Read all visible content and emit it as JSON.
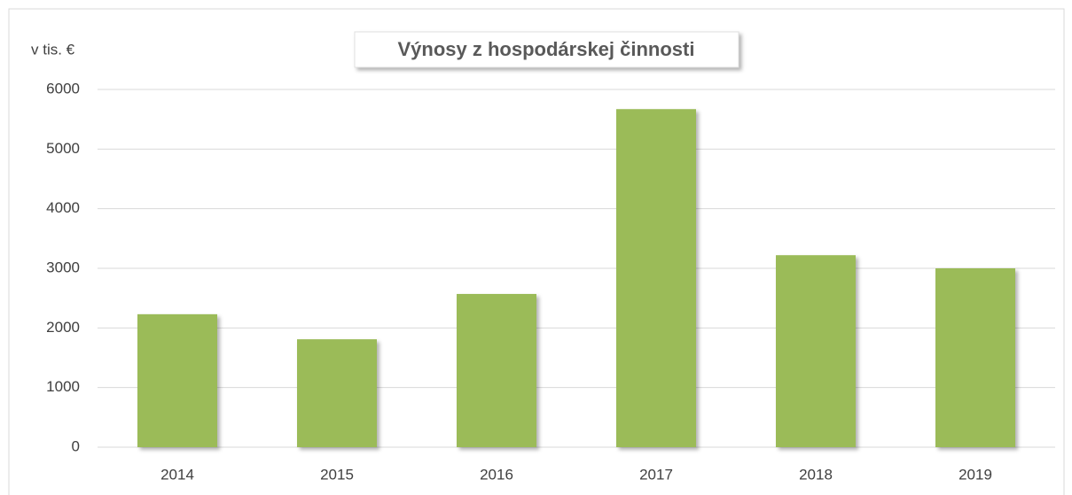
{
  "chart_data": {
    "type": "bar",
    "title": "Výnosy z hospodárskej činnosti",
    "y_label": "v tis. €",
    "categories": [
      "2014",
      "2015",
      "2016",
      "2017",
      "2018",
      "2019"
    ],
    "values": [
      2230,
      1810,
      2570,
      5670,
      3220,
      3000
    ],
    "color": "#9bbb59",
    "ylim": [
      0,
      6000
    ],
    "yticks": [
      0,
      1000,
      2000,
      3000,
      4000,
      5000,
      6000
    ],
    "grid": true
  }
}
